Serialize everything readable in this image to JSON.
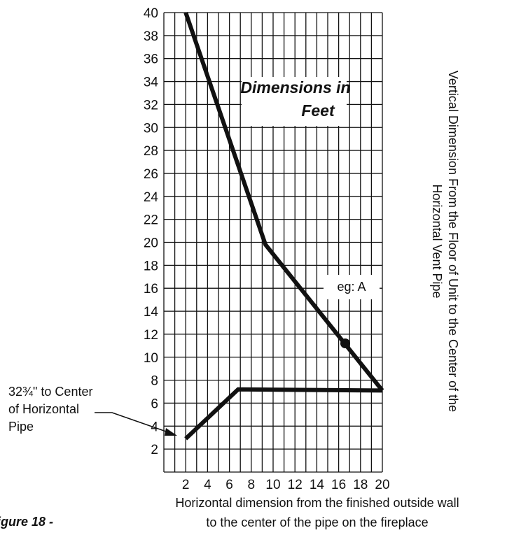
{
  "chart_data": {
    "type": "line",
    "title": "Dimensions in Feet",
    "title_lines": [
      "Dimensions in",
      "Feet"
    ],
    "xlabel": "Horizontal dimension from the finished outside wall to the center of the pipe on the fireplace",
    "xlabel_lines": [
      "Horizontal dimension from the finished outside wall",
      "to the center of the pipe on the fireplace"
    ],
    "ylabel": "Vertical Dimension From the Floor of Unit to the Center of the Horizontal Vent Pipe",
    "ylabel_lines": [
      "Vertical Dimension From the Floor of Unit to the Center of the",
      "Horizontal Vent Pipe"
    ],
    "xlim": [
      0,
      20
    ],
    "ylim": [
      0,
      40
    ],
    "x_ticks": [
      2,
      4,
      6,
      8,
      10,
      12,
      14,
      16,
      18,
      20
    ],
    "x_tick_labels": [
      "2",
      "4",
      "6",
      "8",
      "10",
      "12",
      "14",
      "16",
      "18",
      "20"
    ],
    "y_ticks": [
      2,
      4,
      6,
      8,
      10,
      12,
      14,
      16,
      18,
      20,
      22,
      24,
      26,
      28,
      30,
      32,
      34,
      36,
      38,
      40
    ],
    "grid": true,
    "series": [
      {
        "x": [
          2,
          9.3,
          20
        ],
        "y": [
          40,
          19.8,
          7.1
        ]
      },
      {
        "x": [
          2,
          6.8,
          20
        ],
        "y": [
          2.9,
          7.2,
          7.1
        ]
      }
    ],
    "marker": {
      "x": 16.6,
      "y": 11.2
    },
    "annotations": {
      "example_label": "eg: A",
      "pipe_note": [
        "32¾\" to Center",
        "of Horizontal",
        "Pipe"
      ],
      "figure_caption": "igure 18 -"
    }
  }
}
